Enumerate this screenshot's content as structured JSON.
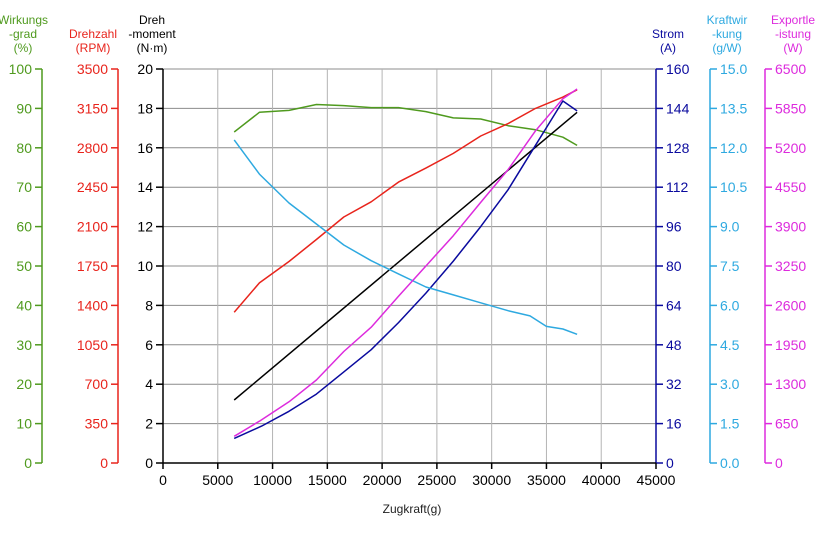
{
  "chart_data": {
    "type": "line",
    "xlabel": "Zugkraft(g)",
    "xlim": [
      0,
      45000
    ],
    "xticks": [
      "0",
      "5000",
      "10000",
      "15000",
      "20000",
      "25000",
      "30000",
      "35000",
      "40000",
      "45000"
    ],
    "grid": true,
    "axes": [
      {
        "id": "eff",
        "label": [
          "Wirkungs",
          "-grad",
          "(%)"
        ],
        "color": "#4f9a1e",
        "min": 0,
        "max": 100,
        "ticks": [
          "0",
          "10",
          "20",
          "30",
          "40",
          "50",
          "60",
          "70",
          "80",
          "90",
          "100"
        ]
      },
      {
        "id": "rpm",
        "label": [
          "Drehzahl",
          "(RPM)"
        ],
        "color": "#e8241c",
        "min": 0,
        "max": 3500,
        "ticks": [
          "0",
          "350",
          "700",
          "1050",
          "1400",
          "1750",
          "2100",
          "2450",
          "2800",
          "3150",
          "3500"
        ]
      },
      {
        "id": "torque",
        "label": [
          "Dreh",
          "-moment",
          "(N·m)"
        ],
        "color": "#000000",
        "min": 0,
        "max": 20,
        "ticks": [
          "0",
          "2",
          "4",
          "6",
          "8",
          "10",
          "12",
          "14",
          "16",
          "18",
          "20"
        ]
      },
      {
        "id": "current",
        "label": [
          "Strom",
          "(A)"
        ],
        "color": "#0a0a9e",
        "min": 0,
        "max": 160,
        "ticks": [
          "0",
          "16",
          "32",
          "48",
          "64",
          "80",
          "96",
          "112",
          "128",
          "144",
          "160"
        ]
      },
      {
        "id": "kw",
        "label": [
          "Kraftwir",
          "-kung",
          "(g/W)"
        ],
        "color": "#2ea9e0",
        "min": 0,
        "max": 15,
        "ticks": [
          "0.0",
          "1.5",
          "3.0",
          "4.5",
          "6.0",
          "7.5",
          "9.0",
          "10.5",
          "12.0",
          "13.5",
          "15.0"
        ]
      },
      {
        "id": "power",
        "label": [
          "Exportle",
          "-istung",
          "(W)"
        ],
        "color": "#dd2bdd",
        "min": 0,
        "max": 6500,
        "ticks": [
          "0",
          "650",
          "1300",
          "1950",
          "2600",
          "3250",
          "3900",
          "4550",
          "5200",
          "5850",
          "6500"
        ]
      }
    ],
    "series": [
      {
        "axis": "eff",
        "color": "#4f9a1e",
        "x": [
          6500,
          8800,
          11500,
          14000,
          16500,
          19000,
          21500,
          24000,
          26500,
          29000,
          31500,
          34000,
          36500,
          37800
        ],
        "y": [
          84,
          89,
          89.5,
          91,
          90.7,
          90.2,
          90.2,
          89.2,
          87.6,
          87.3,
          85.6,
          84.6,
          82.7,
          80.6
        ]
      },
      {
        "axis": "rpm",
        "color": "#e8241c",
        "x": [
          6500,
          8800,
          11500,
          14000,
          16500,
          19000,
          21500,
          24000,
          26500,
          29000,
          31500,
          34000,
          36500,
          37800
        ],
        "y": [
          1340,
          1600,
          1790,
          1985,
          2185,
          2320,
          2495,
          2620,
          2750,
          2905,
          3015,
          3150,
          3250,
          3315
        ]
      },
      {
        "axis": "torque",
        "color": "#000000",
        "x": [
          6500,
          37800
        ],
        "y": [
          3.2,
          17.8
        ]
      },
      {
        "axis": "current",
        "color": "#0a0a9e",
        "x": [
          6500,
          9000,
          11500,
          14000,
          16500,
          19000,
          21500,
          24000,
          26500,
          29000,
          31500,
          34000,
          36500,
          37800
        ],
        "y": [
          10,
          15,
          21,
          28,
          37,
          46,
          57,
          69,
          82,
          96,
          111,
          129,
          147,
          143
        ]
      },
      {
        "axis": "kw",
        "color": "#2ea9e0",
        "x": [
          6500,
          8800,
          11500,
          14000,
          16500,
          19000,
          21500,
          24000,
          26500,
          29000,
          31500,
          33500,
          35000,
          36500,
          37800
        ],
        "y": [
          12.3,
          11.0,
          9.9,
          9.1,
          8.3,
          7.7,
          7.2,
          6.7,
          6.4,
          6.1,
          5.8,
          5.6,
          5.2,
          5.1,
          4.9
        ]
      },
      {
        "axis": "power",
        "color": "#dd2bdd",
        "x": [
          6500,
          8800,
          11500,
          14000,
          16500,
          19000,
          21500,
          24000,
          26500,
          29000,
          31500,
          34000,
          36500,
          37800
        ],
        "y": [
          440,
          690,
          1010,
          1370,
          1840,
          2240,
          2750,
          3250,
          3750,
          4300,
          4840,
          5480,
          6010,
          6170
        ]
      }
    ]
  }
}
